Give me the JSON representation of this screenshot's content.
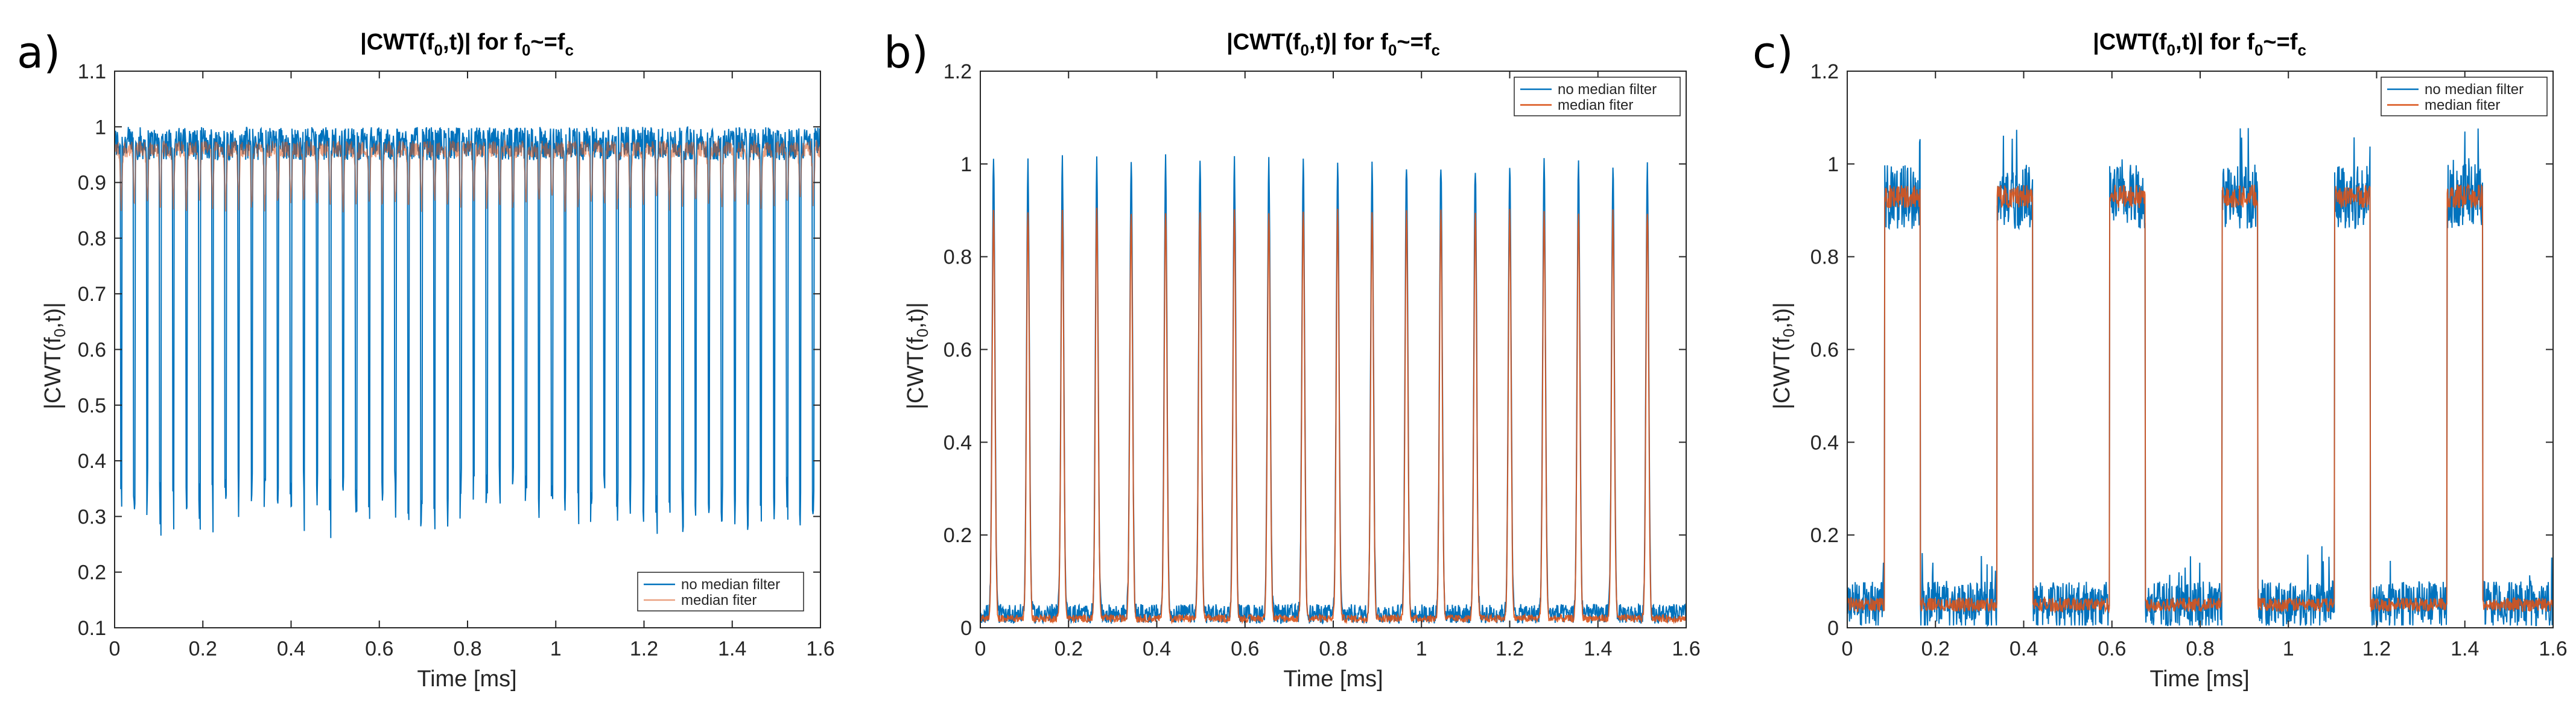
{
  "colors": {
    "raw": "#0072BD",
    "median": "#D95319",
    "axis": "#262626"
  },
  "chart_data": [
    {
      "panel": "a)",
      "type": "line",
      "title": "|CWT(f0,t)| for f0~=fc",
      "title_parts": [
        "|CWT(f",
        "0",
        ",t)| for f",
        "0",
        "~=f",
        "c"
      ],
      "xlabel": "Time [ms]",
      "ylabel_parts": [
        "|CWT(f",
        "0",
        ",t)|"
      ],
      "xlim": [
        0,
        1.6
      ],
      "ylim": [
        0.1,
        1.1
      ],
      "xticks": [
        "0",
        "0.2",
        "0.4",
        "0.6",
        "0.8",
        "1",
        "1.2",
        "1.4",
        "1.6"
      ],
      "yticks": [
        "0.1",
        "0.2",
        "0.3",
        "0.4",
        "0.5",
        "0.6",
        "0.7",
        "0.8",
        "0.9",
        "1",
        "1.1"
      ],
      "legend_position": "bottom-right",
      "series": [
        {
          "name": "no median filter",
          "description": "high level ~0.97 with ~54 deep dips to ~0.27-0.35",
          "period_ms": 0.0296,
          "high": 0.97,
          "low_range": [
            0.26,
            0.35
          ],
          "noise": 0.03
        },
        {
          "name": "median fiter",
          "description": "smoothed ~0.85-1.0 with periodic dips to ~0.85",
          "period_ms": 0.0296,
          "high": 0.96,
          "low": 0.86
        }
      ]
    },
    {
      "panel": "b)",
      "type": "line",
      "title": "|CWT(f0,t)| for f0~=fc",
      "title_parts": [
        "|CWT(f",
        "0",
        ",t)| for f",
        "0",
        "~=f",
        "c"
      ],
      "xlabel": "Time [ms]",
      "ylabel_parts": [
        "|CWT(f",
        "0",
        ",t)|"
      ],
      "xlim": [
        0,
        1.6
      ],
      "ylim": [
        0,
        1.2
      ],
      "xticks": [
        "0",
        "0.2",
        "0.4",
        "0.6",
        "0.8",
        "1",
        "1.2",
        "1.4",
        "1.6"
      ],
      "yticks": [
        "0",
        "0.2",
        "0.4",
        "0.6",
        "0.8",
        "1",
        "1.2"
      ],
      "legend_position": "top-right",
      "series": [
        {
          "name": "no median filter",
          "description": "20 narrow peaks reaching ~1.0, baseline ~0.03",
          "peaks_ms": [
            0.03,
            0.108,
            0.186,
            0.264,
            0.342,
            0.42,
            0.498,
            0.576,
            0.654,
            0.732,
            0.81,
            0.888,
            0.966,
            1.044,
            1.122,
            1.2,
            1.278,
            1.356,
            1.434,
            1.512
          ],
          "peak": 1.0,
          "baseline": 0.03
        },
        {
          "name": "median fiter",
          "description": "same peaks reaching ~0.9",
          "peak": 0.9,
          "baseline": 0.02
        }
      ]
    },
    {
      "panel": "c)",
      "type": "line",
      "title": "|CWT(f0,t)| for f0~=fc",
      "title_parts": [
        "|CWT(f",
        "0",
        ",t)| for f",
        "0",
        "~=f",
        "c"
      ],
      "xlabel": "Time [ms]",
      "ylabel_parts": [
        "|CWT(f",
        "0",
        ",t)|"
      ],
      "xlim": [
        0,
        1.6
      ],
      "ylim": [
        0,
        1.2
      ],
      "xticks": [
        "0",
        "0.2",
        "0.4",
        "0.6",
        "0.8",
        "1",
        "1.2",
        "1.4",
        "1.6"
      ],
      "yticks": [
        "0",
        "0.2",
        "0.4",
        "0.6",
        "0.8",
        "1",
        "1.2"
      ],
      "legend_position": "top-right",
      "series": [
        {
          "name": "no median filter",
          "description": "6 plateaus near ~0.93 with noisy baseline ~0.05",
          "plateaus_ms": [
            [
              0.085,
              0.165
            ],
            [
              0.34,
              0.42
            ],
            [
              0.595,
              0.675
            ],
            [
              0.85,
              0.93
            ],
            [
              1.105,
              1.185
            ],
            [
              1.36,
              1.44
            ]
          ],
          "high": 0.93,
          "baseline": 0.05
        },
        {
          "name": "median fiter",
          "description": "smoothed plateaus ~0.93, baseline ~0.05",
          "high": 0.93,
          "baseline": 0.05
        }
      ]
    }
  ]
}
